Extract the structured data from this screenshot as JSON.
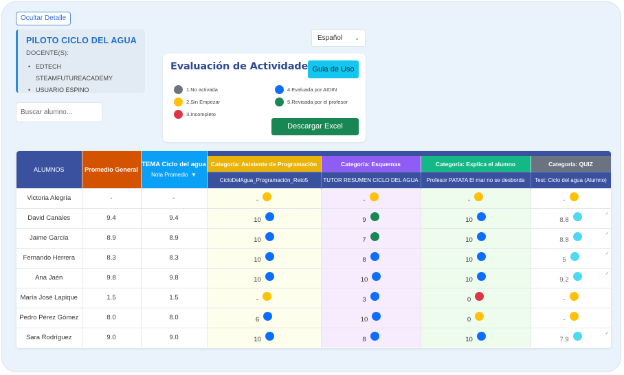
{
  "header": {
    "hide_detail_label": "Ocultar Detalle",
    "course_title": "PILOTO CICLO DEL AGUA",
    "docentes_label": "DOCENTE(S):",
    "docentes": [
      "EDTECH STEAMFUTUREACADEMY",
      "USUARIO ESPINO"
    ],
    "search_placeholder": "Buscar alumno...",
    "language": "Español",
    "language_icon": "chevron-down-icon"
  },
  "evaluation": {
    "title": "Evaluación de Actividades",
    "guide_label": "Guia de Uso",
    "download_label": "Descargar Excel",
    "legend": [
      {
        "label": "1.No activada",
        "color": "#6c757d"
      },
      {
        "label": "2.Sin Empezar",
        "color": "#ffc107"
      },
      {
        "label": "3.Incompleto",
        "color": "#dc3545"
      },
      {
        "label": "4.Evaluada por AIDIN",
        "color": "#0d6efd"
      },
      {
        "label": "5.Revisada por el profesor",
        "color": "#198754"
      }
    ]
  },
  "table": {
    "headers": {
      "alumnos": "ALUMNOS",
      "promedio": "Promedio General",
      "tema_title": "TEMA Ciclo del agua",
      "tema_sub": "Nota Promedio",
      "sort_icon": "▼"
    },
    "categories": [
      {
        "label": "Categoría: Asistente de Programación",
        "color": "#e9b308",
        "activity": "CicloDelAgua_Programación_Reto5"
      },
      {
        "label": "Categoría: Esquemas",
        "color": "#8f5cf5",
        "activity": "TUTOR RESUMEN CICLO DEL AGUA"
      },
      {
        "label": "Categoría: Explica el alumno",
        "color": "#14b884",
        "activity": "Profesor PATATA El mar no se desborda"
      },
      {
        "label": "Categoría: QUIZ",
        "color": "#6b7280",
        "activity": "Test: Ciclo del agua (Alumno)"
      }
    ],
    "status_colors": {
      "yellow": "#ffc107",
      "blue": "#0d6efd",
      "green": "#198754",
      "red": "#dc3545",
      "cyan": "#4dd9f0"
    },
    "check_icon": "✓",
    "rows": [
      {
        "name": "Victoria Alegría",
        "promedio": "-",
        "tema": "-",
        "cells": [
          {
            "v": "-",
            "s": "yellow"
          },
          {
            "v": "-",
            "s": "yellow"
          },
          {
            "v": "-",
            "s": "yellow"
          },
          {
            "v": "-",
            "s": "yellow",
            "check": false
          }
        ]
      },
      {
        "name": "David Canales",
        "promedio": "9.4",
        "tema": "9.4",
        "cells": [
          {
            "v": "10",
            "s": "blue"
          },
          {
            "v": "9",
            "s": "green"
          },
          {
            "v": "10",
            "s": "blue"
          },
          {
            "v": "8.8",
            "s": "cyan",
            "check": true
          }
        ]
      },
      {
        "name": "Jaime García",
        "promedio": "8.9",
        "tema": "8.9",
        "cells": [
          {
            "v": "10",
            "s": "blue"
          },
          {
            "v": "7",
            "s": "green"
          },
          {
            "v": "10",
            "s": "blue"
          },
          {
            "v": "8.8",
            "s": "cyan",
            "check": true
          }
        ]
      },
      {
        "name": "Fernando Herrera",
        "promedio": "8.3",
        "tema": "8.3",
        "cells": [
          {
            "v": "10",
            "s": "blue"
          },
          {
            "v": "8",
            "s": "blue"
          },
          {
            "v": "10",
            "s": "blue"
          },
          {
            "v": "5",
            "s": "cyan",
            "check": true
          }
        ]
      },
      {
        "name": "Ana Jaén",
        "promedio": "9.8",
        "tema": "9.8",
        "cells": [
          {
            "v": "10",
            "s": "blue"
          },
          {
            "v": "10",
            "s": "blue"
          },
          {
            "v": "10",
            "s": "blue"
          },
          {
            "v": "9.2",
            "s": "cyan",
            "check": true
          }
        ]
      },
      {
        "name": "María José Lapique",
        "promedio": "1.5",
        "tema": "1.5",
        "cells": [
          {
            "v": "-",
            "s": "yellow"
          },
          {
            "v": "3",
            "s": "blue"
          },
          {
            "v": "0",
            "s": "red"
          },
          {
            "v": "-",
            "s": "yellow",
            "check": false
          }
        ]
      },
      {
        "name": "Pedro Pérez Gómez",
        "promedio": "8.0",
        "tema": "8.0",
        "cells": [
          {
            "v": "6",
            "s": "blue"
          },
          {
            "v": "10",
            "s": "blue"
          },
          {
            "v": "0",
            "s": "yellow"
          },
          {
            "v": "-",
            "s": "yellow",
            "check": false
          }
        ]
      },
      {
        "name": "Sara Rodríguez",
        "promedio": "9.0",
        "tema": "9.0",
        "cells": [
          {
            "v": "10",
            "s": "blue"
          },
          {
            "v": "8",
            "s": "blue"
          },
          {
            "v": "10",
            "s": "blue"
          },
          {
            "v": "7.9",
            "s": "cyan",
            "check": true
          }
        ]
      }
    ]
  }
}
